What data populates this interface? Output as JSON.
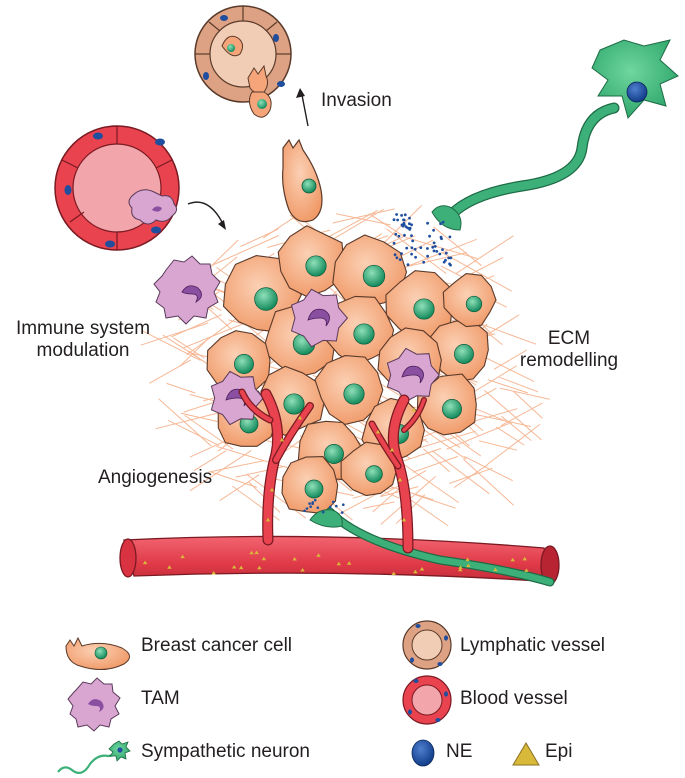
{
  "labels": {
    "invasion": "Invasion",
    "immune_line1": "Immune system",
    "immune_line2": "modulation",
    "ecm_line1": "ECM",
    "ecm_line2": "remodelling",
    "angiogenesis": "Angiogenesis"
  },
  "legend": {
    "breast_cancer_cell": "Breast cancer cell",
    "tam": "TAM",
    "sympathetic_neuron": "Sympathetic neuron",
    "lymphatic_vessel": "Lymphatic vessel",
    "blood_vessel": "Blood vessel",
    "ne": "NE",
    "epi": "Epi"
  },
  "colors": {
    "cancer_cell": "#f5a07a",
    "nucleus": "#1f9a6a",
    "tam": "#d9a6d1",
    "tam_nucleus": "#8a4fa0",
    "neuron": "#3db07a",
    "blood_vessel": "#e8434e",
    "lymphatic": "#d9a07e",
    "ne_dot": "#1f4e9e",
    "epi": "#d9b93a",
    "ecm": "#f5b08a"
  }
}
